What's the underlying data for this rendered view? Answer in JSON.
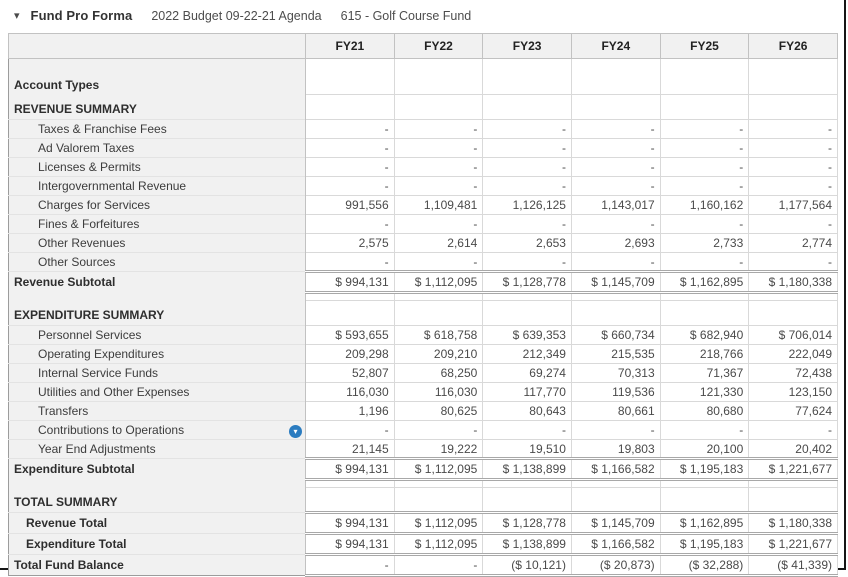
{
  "icons": {
    "collapse": "▾",
    "row_dropdown": "▾"
  },
  "colors": {
    "accent_blue": "#2b7cc0",
    "header_bg": "#f1f1f1",
    "frame_border": "#151515"
  },
  "header": {
    "title": "Fund Pro Forma",
    "budget": "2022 Budget 09-22-21 Agenda",
    "fund": "615 - Golf Course Fund"
  },
  "table": {
    "columns": [
      "FY21",
      "FY22",
      "FY23",
      "FY24",
      "FY25",
      "FY26"
    ],
    "rows": [
      {
        "label": "Account Types",
        "type": "tall-section",
        "values": [
          "",
          "",
          "",
          "",
          "",
          ""
        ]
      },
      {
        "label": "REVENUE SUMMARY",
        "type": "section",
        "values": [
          "",
          "",
          "",
          "",
          "",
          ""
        ]
      },
      {
        "label": "Taxes & Franchise Fees",
        "type": "detail",
        "values": [
          "-",
          "-",
          "-",
          "-",
          "-",
          "-"
        ]
      },
      {
        "label": "Ad Valorem Taxes",
        "type": "detail",
        "values": [
          "-",
          "-",
          "-",
          "-",
          "-",
          "-"
        ]
      },
      {
        "label": "Licenses & Permits",
        "type": "detail",
        "values": [
          "-",
          "-",
          "-",
          "-",
          "-",
          "-"
        ]
      },
      {
        "label": "Intergovernmental Revenue",
        "type": "detail",
        "values": [
          "-",
          "-",
          "-",
          "-",
          "-",
          "-"
        ]
      },
      {
        "label": "Charges for Services",
        "type": "detail",
        "values": [
          "991,556",
          "1,109,481",
          "1,126,125",
          "1,143,017",
          "1,160,162",
          "1,177,564"
        ]
      },
      {
        "label": "Fines & Forfeitures",
        "type": "detail",
        "values": [
          "-",
          "-",
          "-",
          "-",
          "-",
          "-"
        ]
      },
      {
        "label": "Other Revenues",
        "type": "detail",
        "values": [
          "2,575",
          "2,614",
          "2,653",
          "2,693",
          "2,733",
          "2,774"
        ]
      },
      {
        "label": "Other Sources",
        "type": "detail",
        "values": [
          "-",
          "-",
          "-",
          "-",
          "-",
          "-"
        ]
      },
      {
        "label": "Revenue Subtotal",
        "type": "subtotal",
        "values": [
          "$ 994,131",
          "$ 1,112,095",
          "$ 1,128,778",
          "$ 1,145,709",
          "$ 1,162,895",
          "$ 1,180,338"
        ]
      },
      {
        "label": "",
        "type": "spacer",
        "values": [
          "",
          "",
          "",
          "",
          "",
          ""
        ]
      },
      {
        "label": "EXPENDITURE SUMMARY",
        "type": "section",
        "values": [
          "",
          "",
          "",
          "",
          "",
          ""
        ]
      },
      {
        "label": "Personnel Services",
        "type": "detail",
        "values": [
          "$ 593,655",
          "$ 618,758",
          "$ 639,353",
          "$ 660,734",
          "$ 682,940",
          "$ 706,014"
        ]
      },
      {
        "label": "Operating Expenditures",
        "type": "detail",
        "values": [
          "209,298",
          "209,210",
          "212,349",
          "215,535",
          "218,766",
          "222,049"
        ]
      },
      {
        "label": "Internal Service Funds",
        "type": "detail",
        "values": [
          "52,807",
          "68,250",
          "69,274",
          "70,313",
          "71,367",
          "72,438"
        ]
      },
      {
        "label": "Utilities and Other Expenses",
        "type": "detail",
        "values": [
          "116,030",
          "116,030",
          "117,770",
          "119,536",
          "121,330",
          "123,150"
        ]
      },
      {
        "label": "Transfers",
        "type": "detail",
        "values": [
          "1,196",
          "80,625",
          "80,643",
          "80,661",
          "80,680",
          "77,624"
        ]
      },
      {
        "label": "Contributions to Operations",
        "type": "detail",
        "icon": "dropdown",
        "values": [
          "-",
          "-",
          "-",
          "-",
          "-",
          "-"
        ]
      },
      {
        "label": "Year End Adjustments",
        "type": "detail",
        "values": [
          "21,145",
          "19,222",
          "19,510",
          "19,803",
          "20,100",
          "20,402"
        ]
      },
      {
        "label": "Expenditure Subtotal",
        "type": "subtotal",
        "values": [
          "$ 994,131",
          "$ 1,112,095",
          "$ 1,138,899",
          "$ 1,166,582",
          "$ 1,195,183",
          "$ 1,221,677"
        ]
      },
      {
        "label": "",
        "type": "spacer",
        "values": [
          "",
          "",
          "",
          "",
          "",
          ""
        ]
      },
      {
        "label": "TOTAL SUMMARY",
        "type": "section",
        "values": [
          "",
          "",
          "",
          "",
          "",
          ""
        ]
      },
      {
        "label": "Revenue Total",
        "type": "total",
        "values": [
          "$ 994,131",
          "$ 1,112,095",
          "$ 1,128,778",
          "$ 1,145,709",
          "$ 1,162,895",
          "$ 1,180,338"
        ]
      },
      {
        "label": "Expenditure Total",
        "type": "total",
        "values": [
          "$ 994,131",
          "$ 1,112,095",
          "$ 1,138,899",
          "$ 1,166,582",
          "$ 1,195,183",
          "$ 1,221,677"
        ]
      },
      {
        "label": "Total Fund Balance",
        "type": "grand-total",
        "values": [
          "-",
          "-",
          "($ 10,121)",
          "($ 20,873)",
          "($ 32,288)",
          "($ 41,339)"
        ]
      }
    ]
  }
}
